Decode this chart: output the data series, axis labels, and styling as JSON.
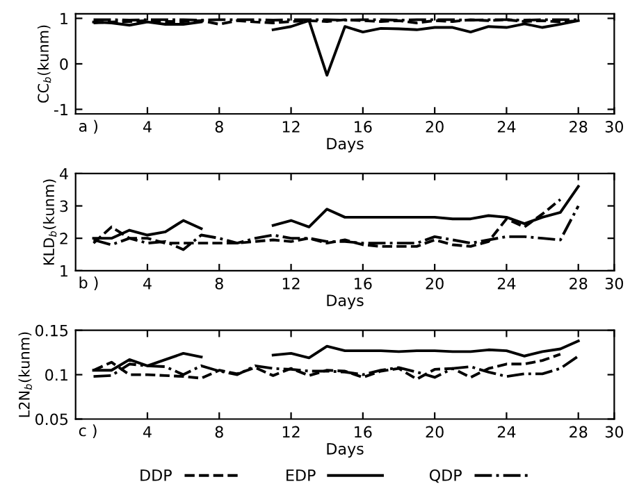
{
  "chart_data": [
    {
      "type": "line",
      "ylabel": "CC$_{b}$(kunm)",
      "xlabel": "Days",
      "annotations": [
        "a )"
      ],
      "x": [
        1,
        2,
        3,
        4,
        5,
        6,
        7,
        8,
        9,
        10,
        11,
        12,
        13,
        14,
        15,
        16,
        17,
        18,
        19,
        20,
        21,
        22,
        23,
        24,
        25,
        26,
        27,
        28
      ],
      "xlim": [
        0,
        30
      ],
      "xticks": [
        4,
        8,
        12,
        16,
        20,
        24,
        28,
        30
      ],
      "ylim": [
        -1.1,
        1.1
      ],
      "yticks": [
        -1,
        0,
        1
      ],
      "grid": false,
      "legend": "bottom",
      "series": [
        {
          "name": "DDP",
          "color": "#000000",
          "line_style": "dashed",
          "values": [
            0.9,
            0.92,
            0.93,
            0.95,
            0.93,
            0.93,
            0.95,
            0.87,
            0.95,
            0.92,
            0.9,
            0.93,
            0.95,
            0.93,
            0.97,
            0.95,
            0.93,
            0.95,
            0.9,
            0.95,
            0.93,
            0.97,
            0.95,
            0.97,
            0.93,
            0.95,
            0.92,
            0.95
          ]
        },
        {
          "name": "EDP",
          "color": "#000000",
          "line_style": "solid",
          "values": [
            0.92,
            0.9,
            0.85,
            0.92,
            0.87,
            0.87,
            0.92,
            null,
            null,
            null,
            0.75,
            0.82,
            0.95,
            -0.25,
            0.82,
            0.7,
            0.78,
            0.77,
            0.75,
            0.8,
            0.8,
            0.7,
            0.82,
            0.8,
            0.88,
            0.8,
            0.87,
            0.95
          ]
        },
        {
          "name": "QDP",
          "color": "#000000",
          "line_style": "dashdot",
          "values": [
            0.97,
            0.97,
            0.96,
            0.97,
            0.97,
            0.97,
            0.96,
            0.97,
            0.97,
            0.97,
            0.96,
            0.97,
            0.97,
            0.97,
            0.96,
            0.97,
            0.97,
            0.96,
            0.97,
            0.97,
            0.97,
            0.96,
            0.97,
            0.97,
            0.96,
            0.97,
            0.97,
            0.97
          ]
        }
      ]
    },
    {
      "type": "line",
      "ylabel": "KLD$_{b}$(kunm)",
      "xlabel": "Days",
      "annotations": [
        "b )"
      ],
      "x": [
        1,
        2,
        3,
        4,
        5,
        6,
        7,
        8,
        9,
        10,
        11,
        12,
        13,
        14,
        15,
        16,
        17,
        18,
        19,
        20,
        21,
        22,
        23,
        24,
        25,
        26,
        27,
        28
      ],
      "xlim": [
        0,
        30
      ],
      "xticks": [
        4,
        8,
        12,
        16,
        20,
        24,
        28,
        30
      ],
      "ylim": [
        1,
        4
      ],
      "yticks": [
        1,
        2,
        3,
        4
      ],
      "grid": false,
      "series": [
        {
          "color": "#000000",
          "line_style": "dashed",
          "values": [
            1.85,
            2.35,
            2.0,
            2.0,
            1.85,
            1.85,
            1.85,
            1.85,
            1.85,
            1.9,
            1.95,
            1.9,
            2.0,
            1.85,
            1.95,
            1.8,
            1.75,
            1.75,
            1.75,
            1.95,
            1.8,
            1.75,
            1.9,
            2.6,
            2.35,
            2.75,
            3.2,
            null
          ]
        },
        {
          "color": "#000000",
          "line_style": "solid",
          "values": [
            2.0,
            2.0,
            2.25,
            2.1,
            2.2,
            2.55,
            2.3,
            null,
            null,
            null,
            2.4,
            2.55,
            2.35,
            2.9,
            2.65,
            2.65,
            2.65,
            2.65,
            2.65,
            2.65,
            2.6,
            2.6,
            2.7,
            2.65,
            2.45,
            2.65,
            2.8,
            3.6
          ]
        },
        {
          "color": "#000000",
          "line_style": "dashdot",
          "values": [
            1.95,
            1.8,
            2.0,
            1.85,
            1.9,
            1.65,
            2.1,
            2.0,
            1.85,
            2.0,
            2.1,
            2.0,
            2.0,
            1.9,
            1.9,
            1.85,
            1.85,
            1.85,
            1.85,
            2.05,
            1.95,
            1.85,
            1.95,
            2.05,
            2.05,
            2.0,
            1.95,
            3.0
          ]
        }
      ]
    },
    {
      "type": "line",
      "ylabel": "L2N$_{b}$(kunm)",
      "xlabel": "Days",
      "annotations": [
        "c )"
      ],
      "x": [
        1,
        2,
        3,
        4,
        5,
        6,
        7,
        8,
        9,
        10,
        11,
        12,
        13,
        14,
        15,
        16,
        17,
        18,
        19,
        20,
        21,
        22,
        23,
        24,
        25,
        26,
        27,
        28
      ],
      "xlim": [
        0,
        30
      ],
      "xticks": [
        4,
        8,
        12,
        16,
        20,
        24,
        28,
        30
      ],
      "ylim": [
        0.05,
        0.15
      ],
      "yticks": [
        0.05,
        0.1,
        0.15
      ],
      "grid": false,
      "series": [
        {
          "color": "#000000",
          "line_style": "dashed",
          "values": [
            0.105,
            0.114,
            0.1,
            0.1,
            0.099,
            0.098,
            0.096,
            0.105,
            0.101,
            0.108,
            0.099,
            0.107,
            0.099,
            0.105,
            0.104,
            0.097,
            0.104,
            0.107,
            0.095,
            0.106,
            0.107,
            0.097,
            0.107,
            0.112,
            0.112,
            0.116,
            0.123,
            null
          ]
        },
        {
          "color": "#000000",
          "line_style": "solid",
          "values": [
            0.105,
            0.105,
            0.117,
            0.11,
            0.117,
            0.124,
            0.12,
            null,
            null,
            null,
            0.122,
            0.124,
            0.119,
            0.132,
            0.127,
            0.127,
            0.127,
            0.126,
            0.127,
            0.127,
            0.126,
            0.126,
            0.128,
            0.127,
            0.121,
            0.126,
            0.129,
            0.138
          ]
        },
        {
          "color": "#000000",
          "line_style": "dashdot",
          "values": [
            0.098,
            0.099,
            0.112,
            0.11,
            0.109,
            0.1,
            0.11,
            0.104,
            0.1,
            0.11,
            0.107,
            0.106,
            0.104,
            0.104,
            0.103,
            0.1,
            0.105,
            0.108,
            0.103,
            0.097,
            0.107,
            0.109,
            0.103,
            0.098,
            0.101,
            0.101,
            0.107,
            0.121
          ]
        }
      ]
    }
  ]
}
